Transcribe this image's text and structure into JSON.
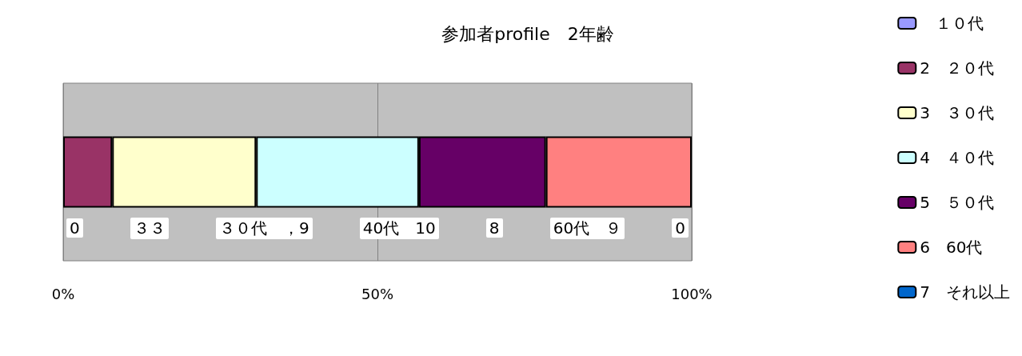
{
  "chart_data": {
    "type": "bar",
    "title": "参加者profile　2年齢",
    "orientation": "horizontal",
    "stacked": true,
    "categories": [
      null
    ],
    "series": [
      {
        "name": "　１０代",
        "color": "#9999ff",
        "values": [
          0
        ]
      },
      {
        "name": "2　２０代",
        "color": "#993366",
        "values": [
          7.8
        ]
      },
      {
        "name": "3　３０代",
        "color": "#ffffcc",
        "values": [
          22.9
        ]
      },
      {
        "name": "4　４０代",
        "color": "#ccffff",
        "values": [
          25.9
        ]
      },
      {
        "name": "5　５０代",
        "color": "#660066",
        "values": [
          20.2
        ]
      },
      {
        "name": "6　60代",
        "color": "#ff8080",
        "values": [
          23.2
        ]
      },
      {
        "name": "7　それ以上",
        "color": "#0066cc",
        "values": [
          0
        ]
      }
    ],
    "annotations": [
      "0",
      "３３",
      "３０代　，9",
      "40代　10",
      "8",
      "60代　９",
      "0"
    ],
    "xlim": [
      0,
      100
    ],
    "xticks": [
      {
        "value": 0,
        "label": "0%"
      },
      {
        "value": 50,
        "label": "50%"
      },
      {
        "value": 100,
        "label": "100%"
      }
    ],
    "grid": "x",
    "legend": "right"
  }
}
